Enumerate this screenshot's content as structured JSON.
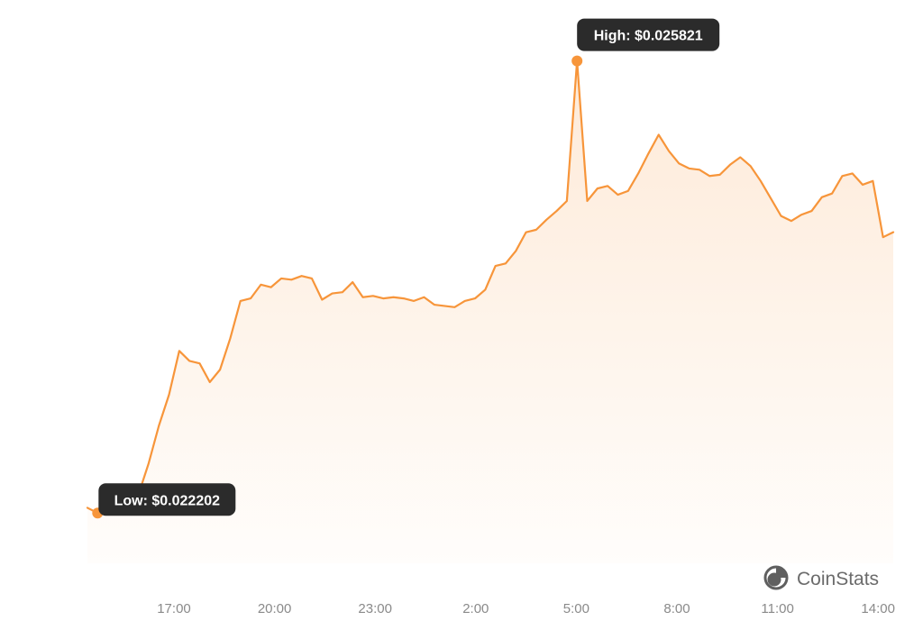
{
  "chart_data": {
    "type": "area",
    "x_ticks": [
      "17:00",
      "20:00",
      "23:00",
      "2:00",
      "5:00",
      "8:00",
      "11:00",
      "14:00"
    ],
    "y_range": [
      0.0218,
      0.02602
    ],
    "series": [
      {
        "values": [
          0.022244,
          0.022202,
          0.022215,
          0.02223,
          0.022232,
          0.02235,
          0.0226,
          0.0229,
          0.02315,
          0.0235,
          0.02342,
          0.0234,
          0.02325,
          0.02335,
          0.0236,
          0.0239,
          0.02392,
          0.02403,
          0.02401,
          0.02408,
          0.02407,
          0.0241,
          0.02408,
          0.02391,
          0.02396,
          0.02397,
          0.02405,
          0.02393,
          0.02394,
          0.02392,
          0.02393,
          0.02392,
          0.0239,
          0.02393,
          0.02387,
          0.02386,
          0.02385,
          0.0239,
          0.02392,
          0.02399,
          0.02418,
          0.0242,
          0.0243,
          0.02445,
          0.02447,
          0.02455,
          0.02462,
          0.0247,
          0.025821,
          0.0247,
          0.0248,
          0.02482,
          0.02475,
          0.02478,
          0.02492,
          0.02508,
          0.02523,
          0.0251,
          0.025,
          0.02496,
          0.02495,
          0.0249,
          0.02491,
          0.02499,
          0.02505,
          0.02498,
          0.02486,
          0.02472,
          0.02458,
          0.02454,
          0.02459,
          0.02462,
          0.02473,
          0.02476,
          0.0249,
          0.02492,
          0.02483,
          0.02486,
          0.02441,
          0.02445
        ]
      }
    ],
    "annotations": {
      "low": {
        "label": "Low: $0.022202",
        "value": 0.022202,
        "index": 1
      },
      "high": {
        "label": "High: $0.025821",
        "value": 0.025821,
        "index": 48
      }
    },
    "line_color": "#f7953a",
    "tooltip_color": "#2b2b2b",
    "grid": false,
    "legend": "none"
  },
  "brand": {
    "name": "CoinStats",
    "icon": "coinstats-logo-icon"
  }
}
